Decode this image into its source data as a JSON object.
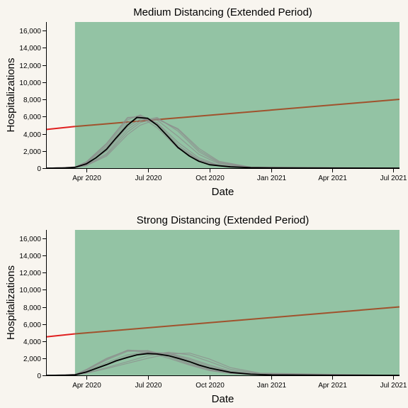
{
  "chart_data": [
    {
      "type": "line",
      "title": "Medium Distancing (Extended Period)",
      "xlabel": "Date",
      "ylabel": "Hospitalizations",
      "xlim": [
        "2020-02-01",
        "2021-07-10"
      ],
      "ylim": [
        0,
        17000
      ],
      "x_ticks": [
        "Apr 2020",
        "Jul 2020",
        "Oct 2020",
        "Jan 2021",
        "Apr 2021",
        "Jul 2021"
      ],
      "y_ticks": [
        "0",
        "2,000",
        "4,000",
        "6,000",
        "8,000",
        "10,000",
        "12,000",
        "14,000",
        "16,000"
      ],
      "grid": false,
      "legend": "none",
      "shaded_region": {
        "start": "2020-03-15",
        "end": "2021-07-10",
        "color": "#93c3a4"
      },
      "capacity_line": {
        "before_color": "#e02020",
        "after_color": "#a0522d",
        "points": [
          {
            "x": "2020-02-01",
            "y": 4500
          },
          {
            "x": "2020-03-15",
            "y": 4850
          },
          {
            "x": "2021-07-10",
            "y": 8000
          }
        ]
      },
      "mean_series": {
        "color": "#000000",
        "x": [
          "2020-02-01",
          "2020-03-01",
          "2020-03-15",
          "2020-04-01",
          "2020-04-15",
          "2020-05-01",
          "2020-05-15",
          "2020-06-01",
          "2020-06-15",
          "2020-07-01",
          "2020-07-15",
          "2020-08-01",
          "2020-08-15",
          "2020-09-01",
          "2020-09-15",
          "2020-10-01",
          "2020-11-01",
          "2020-12-01",
          "2021-01-01",
          "2021-04-01",
          "2021-07-10"
        ],
        "y": [
          0,
          20,
          100,
          500,
          1200,
          2200,
          3500,
          5000,
          5900,
          5800,
          5000,
          3600,
          2400,
          1400,
          800,
          400,
          150,
          60,
          25,
          5,
          0
        ]
      },
      "ensemble": {
        "color": "#8c8c8c",
        "runs": [
          {
            "x": [
              "2020-02-01",
              "2020-03-15",
              "2020-04-01",
              "2020-05-01",
              "2020-06-01",
              "2020-06-20",
              "2020-07-15",
              "2020-08-15",
              "2020-09-15",
              "2020-10-15",
              "2020-12-01",
              "2021-07-10"
            ],
            "y": [
              0,
              120,
              650,
              2600,
              5600,
              6200,
              5200,
              2700,
              1000,
              300,
              60,
              0
            ]
          },
          {
            "x": [
              "2020-02-01",
              "2020-03-15",
              "2020-04-01",
              "2020-05-01",
              "2020-06-01",
              "2020-06-20",
              "2020-07-15",
              "2020-08-15",
              "2020-09-15",
              "2020-10-15",
              "2020-12-01",
              "2021-07-10"
            ],
            "y": [
              0,
              80,
              380,
              1700,
              4500,
              5500,
              5900,
              4300,
              1900,
              600,
              100,
              0
            ]
          },
          {
            "x": [
              "2020-02-01",
              "2020-03-15",
              "2020-04-01",
              "2020-05-01",
              "2020-06-01",
              "2020-06-20",
              "2020-07-15",
              "2020-08-15",
              "2020-09-15",
              "2020-10-15",
              "2020-12-01",
              "2021-07-10"
            ],
            "y": [
              0,
              140,
              750,
              2900,
              5900,
              6000,
              4700,
              2300,
              900,
              250,
              50,
              0
            ]
          },
          {
            "x": [
              "2020-02-01",
              "2020-03-15",
              "2020-04-01",
              "2020-05-01",
              "2020-06-01",
              "2020-06-20",
              "2020-07-15",
              "2020-08-15",
              "2020-09-15",
              "2020-10-15",
              "2020-12-01",
              "2021-07-10"
            ],
            "y": [
              0,
              60,
              300,
              1400,
              3900,
              5000,
              5700,
              4600,
              2300,
              800,
              120,
              0
            ]
          },
          {
            "x": [
              "2020-02-01",
              "2020-03-15",
              "2020-04-01",
              "2020-05-01",
              "2020-06-01",
              "2020-06-20",
              "2020-07-15",
              "2020-08-15",
              "2020-09-15",
              "2020-10-15",
              "2020-12-01",
              "2021-07-10"
            ],
            "y": [
              0,
              110,
              600,
              2400,
              5300,
              5900,
              5300,
              3000,
              1200,
              350,
              70,
              0
            ]
          },
          {
            "x": [
              "2020-02-01",
              "2020-03-15",
              "2020-04-01",
              "2020-05-01",
              "2020-06-01",
              "2020-06-20",
              "2020-07-15",
              "2020-08-15",
              "2020-09-15",
              "2020-10-15",
              "2020-12-01",
              "2021-07-10"
            ],
            "y": [
              0,
              90,
              450,
              2000,
              4800,
              5700,
              5600,
              3700,
              1600,
              500,
              90,
              0
            ]
          },
          {
            "x": [
              "2020-02-01",
              "2020-03-15",
              "2020-04-01",
              "2020-05-01",
              "2020-06-01",
              "2020-06-20",
              "2020-07-15",
              "2020-08-15",
              "2020-09-15",
              "2020-10-15",
              "2020-12-01",
              "2021-07-10"
            ],
            "y": [
              0,
              130,
              700,
              2800,
              5800,
              6100,
              5000,
              2500,
              950,
              280,
              55,
              0
            ]
          },
          {
            "x": [
              "2020-02-01",
              "2020-03-15",
              "2020-04-01",
              "2020-05-01",
              "2020-06-01",
              "2020-06-20",
              "2020-07-15",
              "2020-08-15",
              "2020-09-15",
              "2020-10-15",
              "2020-12-01",
              "2021-07-10"
            ],
            "y": [
              0,
              70,
              340,
              1550,
              4200,
              5300,
              5800,
              4500,
              2100,
              700,
              110,
              0
            ]
          }
        ]
      }
    },
    {
      "type": "line",
      "title": "Strong Distancing (Extended Period)",
      "xlabel": "Date",
      "ylabel": "Hospitalizations",
      "xlim": [
        "2020-02-01",
        "2021-07-10"
      ],
      "ylim": [
        0,
        17000
      ],
      "x_ticks": [
        "Apr 2020",
        "Jul 2020",
        "Oct 2020",
        "Jan 2021",
        "Apr 2021",
        "Jul 2021"
      ],
      "y_ticks": [
        "0",
        "2,000",
        "4,000",
        "6,000",
        "8,000",
        "10,000",
        "12,000",
        "14,000",
        "16,000"
      ],
      "grid": false,
      "legend": "none",
      "shaded_region": {
        "start": "2020-03-15",
        "end": "2021-07-10",
        "color": "#93c3a4"
      },
      "capacity_line": {
        "before_color": "#e02020",
        "after_color": "#a0522d",
        "points": [
          {
            "x": "2020-02-01",
            "y": 4500
          },
          {
            "x": "2020-03-15",
            "y": 4850
          },
          {
            "x": "2021-07-10",
            "y": 8000
          }
        ]
      },
      "mean_series": {
        "color": "#000000",
        "x": [
          "2020-02-01",
          "2020-03-01",
          "2020-03-15",
          "2020-04-01",
          "2020-04-15",
          "2020-05-01",
          "2020-05-15",
          "2020-06-01",
          "2020-06-15",
          "2020-07-01",
          "2020-07-15",
          "2020-08-01",
          "2020-08-15",
          "2020-09-01",
          "2020-09-15",
          "2020-10-01",
          "2020-11-01",
          "2020-12-01",
          "2021-01-01",
          "2021-04-01",
          "2021-07-10"
        ],
        "y": [
          0,
          15,
          60,
          400,
          800,
          1250,
          1700,
          2100,
          2400,
          2550,
          2500,
          2300,
          2000,
          1600,
          1200,
          850,
          350,
          130,
          50,
          8,
          0
        ]
      },
      "ensemble": {
        "color": "#8c8c8c",
        "runs": [
          {
            "x": [
              "2020-02-01",
              "2020-03-15",
              "2020-04-01",
              "2020-05-01",
              "2020-06-01",
              "2020-07-01",
              "2020-08-01",
              "2020-09-01",
              "2020-10-01",
              "2020-11-01",
              "2020-12-15",
              "2021-07-10"
            ],
            "y": [
              0,
              90,
              600,
              1800,
              2800,
              2900,
              2300,
              1400,
              700,
              280,
              80,
              0
            ]
          },
          {
            "x": [
              "2020-02-01",
              "2020-03-15",
              "2020-04-01",
              "2020-05-01",
              "2020-06-01",
              "2020-07-01",
              "2020-08-01",
              "2020-09-01",
              "2020-10-01",
              "2020-11-01",
              "2020-12-15",
              "2021-07-10"
            ],
            "y": [
              0,
              50,
              300,
              900,
              1600,
              2300,
              2700,
              2400,
              1600,
              700,
              200,
              0
            ]
          },
          {
            "x": [
              "2020-02-01",
              "2020-03-15",
              "2020-04-01",
              "2020-05-01",
              "2020-06-01",
              "2020-07-01",
              "2020-08-01",
              "2020-09-01",
              "2020-10-01",
              "2020-11-01",
              "2020-12-15",
              "2021-07-10"
            ],
            "y": [
              0,
              100,
              700,
              2000,
              2900,
              2700,
              2000,
              1200,
              550,
              220,
              60,
              0
            ]
          },
          {
            "x": [
              "2020-02-01",
              "2020-03-15",
              "2020-04-01",
              "2020-05-01",
              "2020-06-01",
              "2020-07-01",
              "2020-08-01",
              "2020-09-01",
              "2020-10-01",
              "2020-11-01",
              "2020-12-15",
              "2021-07-10"
            ],
            "y": [
              0,
              40,
              250,
              800,
              1400,
              2000,
              2500,
              2600,
              1900,
              900,
              260,
              0
            ]
          },
          {
            "x": [
              "2020-02-01",
              "2020-03-15",
              "2020-04-01",
              "2020-05-01",
              "2020-06-01",
              "2020-07-01",
              "2020-08-01",
              "2020-09-01",
              "2020-10-01",
              "2020-11-01",
              "2020-12-15",
              "2021-07-10"
            ],
            "y": [
              0,
              80,
              500,
              1500,
              2400,
              2750,
              2500,
              1700,
              900,
              350,
              100,
              0
            ]
          },
          {
            "x": [
              "2020-02-01",
              "2020-03-15",
              "2020-04-01",
              "2020-05-01",
              "2020-06-01",
              "2020-07-01",
              "2020-08-01",
              "2020-09-01",
              "2020-10-01",
              "2020-11-01",
              "2020-12-15",
              "2021-07-10"
            ],
            "y": [
              0,
              60,
              380,
              1200,
              2100,
              2650,
              2600,
              2000,
              1200,
              500,
              140,
              0
            ]
          },
          {
            "x": [
              "2020-02-01",
              "2020-03-15",
              "2020-04-01",
              "2020-05-01",
              "2020-06-01",
              "2020-07-01",
              "2020-08-01",
              "2020-09-01",
              "2020-10-01",
              "2020-11-01",
              "2020-12-15",
              "2021-07-10"
            ],
            "y": [
              0,
              110,
              650,
              1900,
              2950,
              2850,
              2150,
              1300,
              620,
              250,
              70,
              0
            ]
          },
          {
            "x": [
              "2020-02-01",
              "2020-03-15",
              "2020-04-01",
              "2020-05-01",
              "2020-06-01",
              "2020-07-01",
              "2020-08-01",
              "2020-09-01",
              "2020-10-01",
              "2020-11-01",
              "2020-12-15",
              "2021-07-10"
            ],
            "y": [
              0,
              70,
              420,
              1300,
              2200,
              2700,
              2550,
              1850,
              1050,
              420,
              120,
              0
            ]
          }
        ]
      }
    }
  ]
}
